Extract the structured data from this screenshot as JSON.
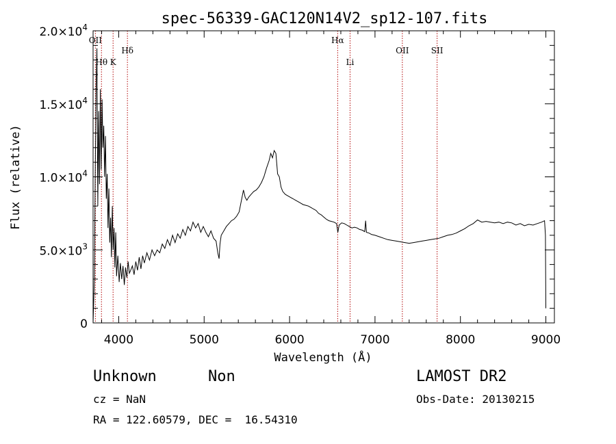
{
  "chart_data": {
    "type": "line",
    "title": "spec-56339-GAC120N14V2_sp12-107.fits",
    "xlabel": "Wavelength (Å)",
    "ylabel": "Flux (relative)",
    "xlim": [
      3700,
      9100
    ],
    "ylim": [
      0,
      20000
    ],
    "x_ticks": [
      4000,
      5000,
      6000,
      7000,
      8000,
      9000
    ],
    "x_tick_labels": [
      "4000",
      "5000",
      "6000",
      "7000",
      "8000",
      "9000"
    ],
    "y_ticks": [
      {
        "value": 0,
        "mantissa": "0",
        "exponent": ""
      },
      {
        "value": 5000,
        "mantissa": "5.0×10",
        "exponent": "3"
      },
      {
        "value": 10000,
        "mantissa": "1.0×10",
        "exponent": "4"
      },
      {
        "value": 15000,
        "mantissa": "1.5×10",
        "exponent": "4"
      },
      {
        "value": 20000,
        "mantissa": "2.0×10",
        "exponent": "4"
      }
    ],
    "grid": false,
    "series": [
      {
        "color": "#000000",
        "x": [
          3700,
          3715,
          3725,
          3735,
          3745,
          3755,
          3765,
          3775,
          3785,
          3795,
          3805,
          3815,
          3825,
          3835,
          3845,
          3855,
          3865,
          3875,
          3885,
          3895,
          3905,
          3915,
          3925,
          3935,
          3945,
          3955,
          3965,
          3975,
          3990,
          4005,
          4020,
          4035,
          4050,
          4065,
          4080,
          4095,
          4110,
          4125,
          4140,
          4160,
          4180,
          4200,
          4220,
          4240,
          4260,
          4280,
          4300,
          4330,
          4360,
          4390,
          4420,
          4450,
          4480,
          4510,
          4540,
          4570,
          4600,
          4630,
          4660,
          4690,
          4720,
          4750,
          4780,
          4810,
          4840,
          4870,
          4900,
          4930,
          4960,
          4990,
          5020,
          5050,
          5080,
          5110,
          5140,
          5160,
          5175,
          5185,
          5200,
          5230,
          5260,
          5290,
          5320,
          5350,
          5380,
          5410,
          5440,
          5460,
          5480,
          5500,
          5520,
          5550,
          5580,
          5610,
          5640,
          5670,
          5700,
          5730,
          5760,
          5780,
          5800,
          5820,
          5840,
          5860,
          5880,
          5900,
          5920,
          5950,
          5980,
          6010,
          6040,
          6070,
          6100,
          6130,
          6160,
          6190,
          6220,
          6250,
          6280,
          6310,
          6340,
          6370,
          6400,
          6430,
          6460,
          6490,
          6520,
          6550,
          6565,
          6580,
          6610,
          6640,
          6670,
          6700,
          6730,
          6760,
          6790,
          6820,
          6850,
          6880,
          6890,
          6900,
          6930,
          6960,
          7000,
          7050,
          7100,
          7150,
          7200,
          7250,
          7300,
          7350,
          7400,
          7450,
          7500,
          7550,
          7600,
          7650,
          7700,
          7750,
          7800,
          7850,
          7900,
          7950,
          8000,
          8050,
          8100,
          8150,
          8200,
          8250,
          8300,
          8350,
          8400,
          8450,
          8500,
          8550,
          8600,
          8650,
          8700,
          8750,
          8800,
          8850,
          8900,
          8950,
          8985,
          8995,
          9000
        ],
        "y": [
          0,
          3000,
          10000,
          16000,
          18800,
          8000,
          14500,
          9500,
          16000,
          10500,
          15300,
          12000,
          13500,
          10000,
          12800,
          8500,
          10200,
          6500,
          9200,
          5500,
          7200,
          4500,
          8000,
          5000,
          6500,
          3800,
          6200,
          3200,
          4600,
          2800,
          4100,
          3000,
          3900,
          2600,
          3800,
          3100,
          4200,
          3400,
          3600,
          3900,
          3300,
          4200,
          3600,
          4500,
          3700,
          4600,
          4100,
          4800,
          4300,
          5000,
          4600,
          5000,
          4800,
          5400,
          5100,
          5700,
          5300,
          6000,
          5500,
          6100,
          5800,
          6400,
          6000,
          6600,
          6300,
          6900,
          6500,
          6800,
          6200,
          6600,
          6200,
          5900,
          6300,
          5800,
          5600,
          4800,
          4400,
          5400,
          6000,
          6300,
          6600,
          6800,
          7000,
          7100,
          7300,
          7600,
          8500,
          9100,
          8600,
          8400,
          8600,
          8800,
          9000,
          9100,
          9300,
          9600,
          10000,
          10600,
          11100,
          11600,
          11300,
          11800,
          11600,
          10200,
          10000,
          9300,
          9000,
          8800,
          8700,
          8600,
          8500,
          8400,
          8300,
          8200,
          8100,
          8050,
          8000,
          7900,
          7800,
          7700,
          7500,
          7400,
          7250,
          7100,
          7000,
          6950,
          6900,
          6800,
          6200,
          6700,
          6850,
          6800,
          6700,
          6600,
          6500,
          6550,
          6500,
          6400,
          6350,
          6250,
          7000,
          6200,
          6150,
          6050,
          6000,
          5900,
          5800,
          5700,
          5650,
          5600,
          5550,
          5500,
          5450,
          5500,
          5550,
          5600,
          5650,
          5700,
          5750,
          5800,
          5900,
          6000,
          6050,
          6150,
          6300,
          6450,
          6650,
          6800,
          7050,
          6900,
          6950,
          6900,
          6850,
          6900,
          6800,
          6900,
          6850,
          6700,
          6800,
          6650,
          6750,
          6700,
          6800,
          6900,
          7000,
          6000,
          1000
        ]
      }
    ],
    "annotations": [
      {
        "label": "OII",
        "x": 3727
      },
      {
        "label": "Hθ",
        "x": 3798
      },
      {
        "label": "K",
        "x": 3934
      },
      {
        "label": "Hδ",
        "x": 4102
      },
      {
        "label": "Hα",
        "x": 6563
      },
      {
        "label": "Li",
        "x": 6708
      },
      {
        "label": "OII",
        "x": 7320
      },
      {
        "label": "SII",
        "x": 7727
      }
    ],
    "line_marker_color": "#b00000"
  },
  "info": {
    "class_label": "Unknown",
    "subclass_label": "Non",
    "survey": "LAMOST DR2",
    "redshift": "cz = NaN",
    "obs_date": "Obs-Date: 20130215",
    "coords": "RA = 122.60579, DEC =  16.54310"
  }
}
